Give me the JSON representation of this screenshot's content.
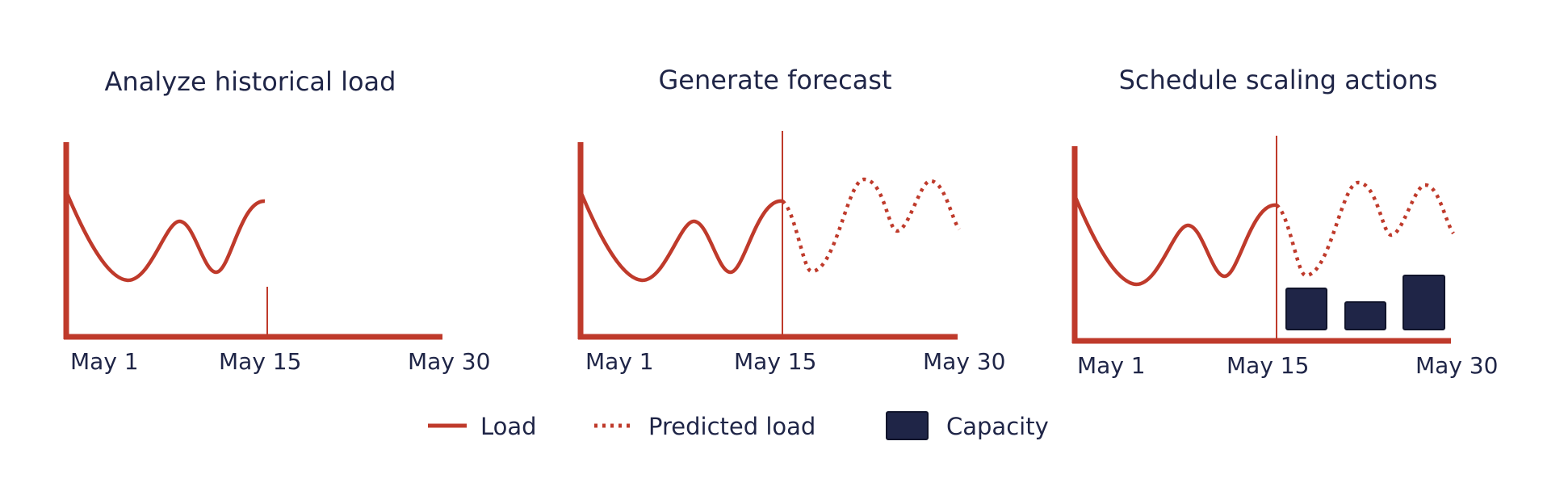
{
  "colors": {
    "load": "#bf3a2b",
    "capacity": "#1f2547",
    "text": "#1f2547"
  },
  "panels": [
    {
      "title": "Analyze historical load",
      "ticks": [
        "May 1",
        "May 15",
        "May 30"
      ],
      "shows_prediction": false,
      "shows_capacity": false
    },
    {
      "title": "Generate forecast",
      "ticks": [
        "May 1",
        "May 15",
        "May 30"
      ],
      "shows_prediction": true,
      "shows_capacity": false
    },
    {
      "title": "Schedule scaling actions",
      "ticks": [
        "May 1",
        "May 15",
        "May 30"
      ],
      "shows_prediction": true,
      "shows_capacity": true
    }
  ],
  "legend": {
    "load": "Load",
    "predicted": "Predicted load",
    "capacity": "Capacity"
  }
}
